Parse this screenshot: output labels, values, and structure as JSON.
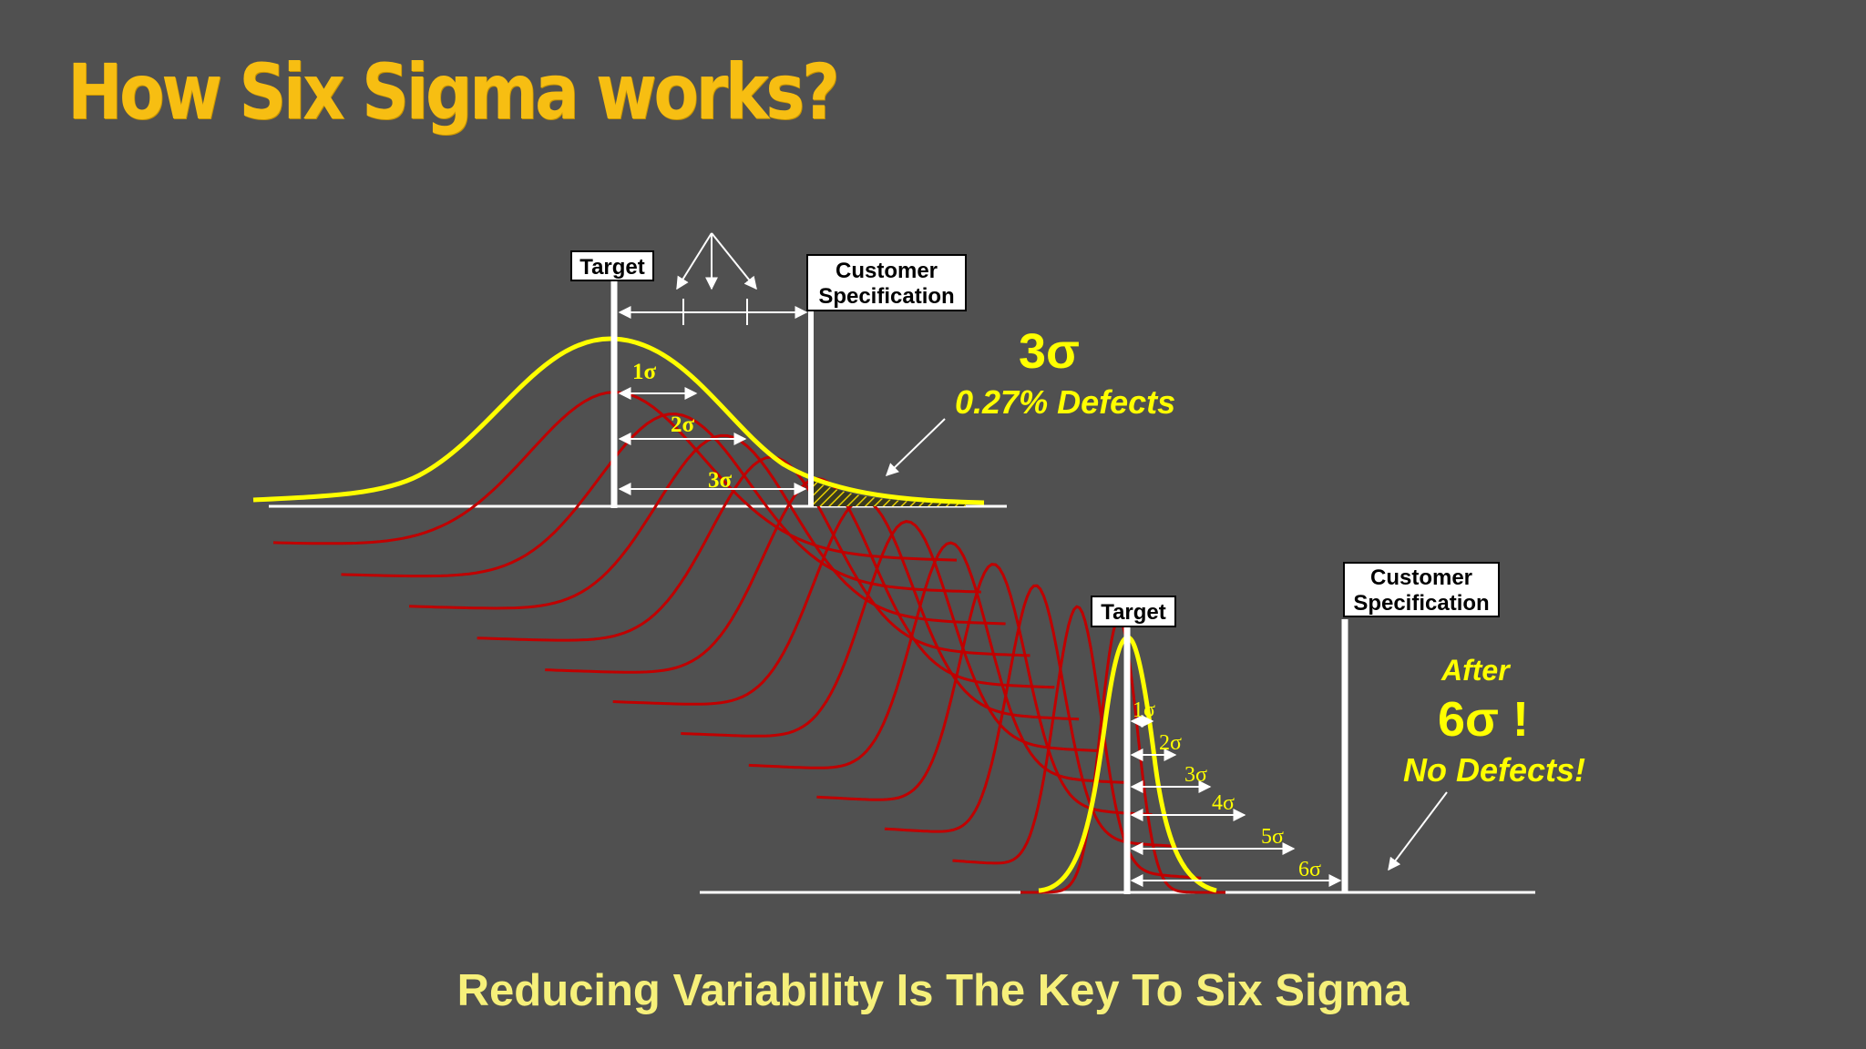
{
  "title": "How Six Sigma works?",
  "footer": "Reducing Variability Is The Key To Six Sigma",
  "upper": {
    "target_label": "Target",
    "spec_label_line1": "Customer",
    "spec_label_line2": "Specification",
    "sigma_labels": [
      "1σ",
      "2σ",
      "3σ"
    ],
    "big_label": "3σ",
    "defects_text": "0.27% Defects"
  },
  "lower": {
    "target_label": "Target",
    "spec_label_line1": "Customer",
    "spec_label_line2": "Specification",
    "sigma_labels": [
      "1σ",
      "2σ",
      "3σ",
      "4σ",
      "5σ",
      "6σ"
    ],
    "after_text": "After",
    "big_label": "6σ !",
    "no_defects_text": "No Defects!"
  },
  "colors": {
    "background": "#505050",
    "title": "#f7be12",
    "footer": "#f6f07a",
    "highlight_curve": "#ffff00",
    "transition_curves": "#c00000",
    "lines": "#ffffff"
  }
}
